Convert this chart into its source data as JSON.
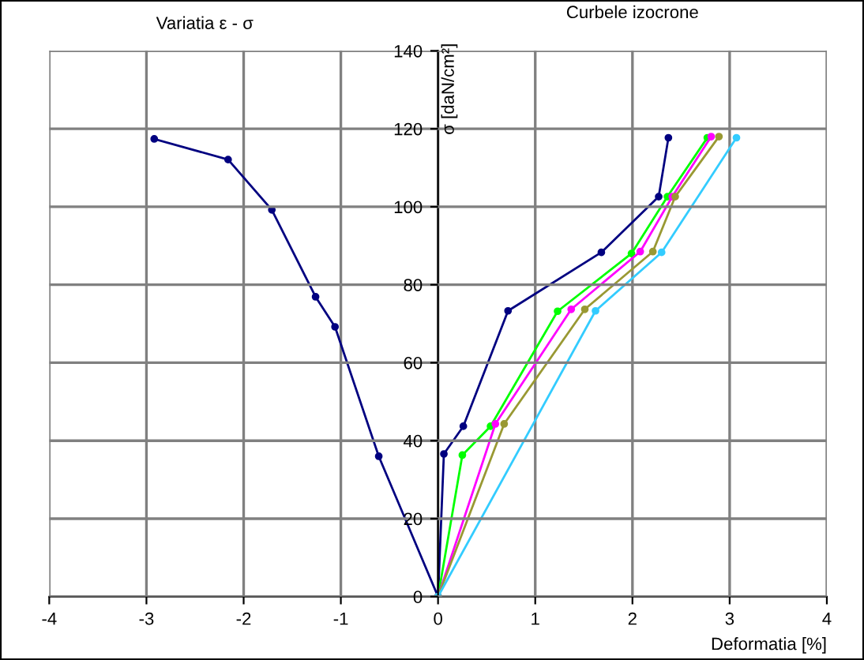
{
  "chart_data": {
    "type": "line",
    "xlabel": "Deformatia [%]",
    "ylabel": "σ [daN/cm²]",
    "annotations": [
      "Variatia ε - σ",
      "Curbele izocrone"
    ],
    "xlim": [
      -4,
      4
    ],
    "xticks": [
      -4,
      -3,
      -2,
      -1,
      0,
      1,
      2,
      3,
      4
    ],
    "ylim": [
      0,
      140
    ],
    "yticks": [
      0,
      20,
      40,
      60,
      80,
      100,
      120,
      140
    ],
    "grid": true,
    "marker": "circle",
    "series": [
      {
        "color": "#000080",
        "x": [
          -2.92,
          -2.16,
          -1.71,
          -1.26,
          -1.06,
          -0.61,
          0
        ],
        "values": [
          117.4,
          112.1,
          99.2,
          76.9,
          69.2,
          36,
          0
        ]
      },
      {
        "color": "#000080",
        "x": [
          0,
          0.06,
          0.26,
          0.72,
          1.68,
          2.27,
          2.37
        ],
        "values": [
          0,
          36.6,
          43.7,
          73.3,
          88.3,
          102.6,
          117.7
        ]
      },
      {
        "color": "#00ff00",
        "x": [
          0,
          0.25,
          0.54,
          1.23,
          1.99,
          2.36,
          2.77
        ],
        "values": [
          0,
          36.3,
          43.7,
          73.2,
          88.0,
          102.6,
          117.7
        ]
      },
      {
        "color": "#ff00ff",
        "x": [
          0,
          0.59,
          1.37,
          2.08,
          2.41,
          2.81
        ],
        "values": [
          0,
          44.3,
          73.7,
          88.5,
          102.6,
          118
        ]
      },
      {
        "color": "#999933",
        "x": [
          0,
          0.68,
          1.51,
          2.21,
          2.44,
          2.89
        ],
        "values": [
          0,
          44.3,
          73.7,
          88.5,
          102.6,
          118
        ]
      },
      {
        "color": "#33ccff",
        "x": [
          0,
          1.62,
          2.3,
          3.07
        ],
        "values": [
          0,
          73.3,
          88.3,
          117.7
        ]
      }
    ]
  }
}
